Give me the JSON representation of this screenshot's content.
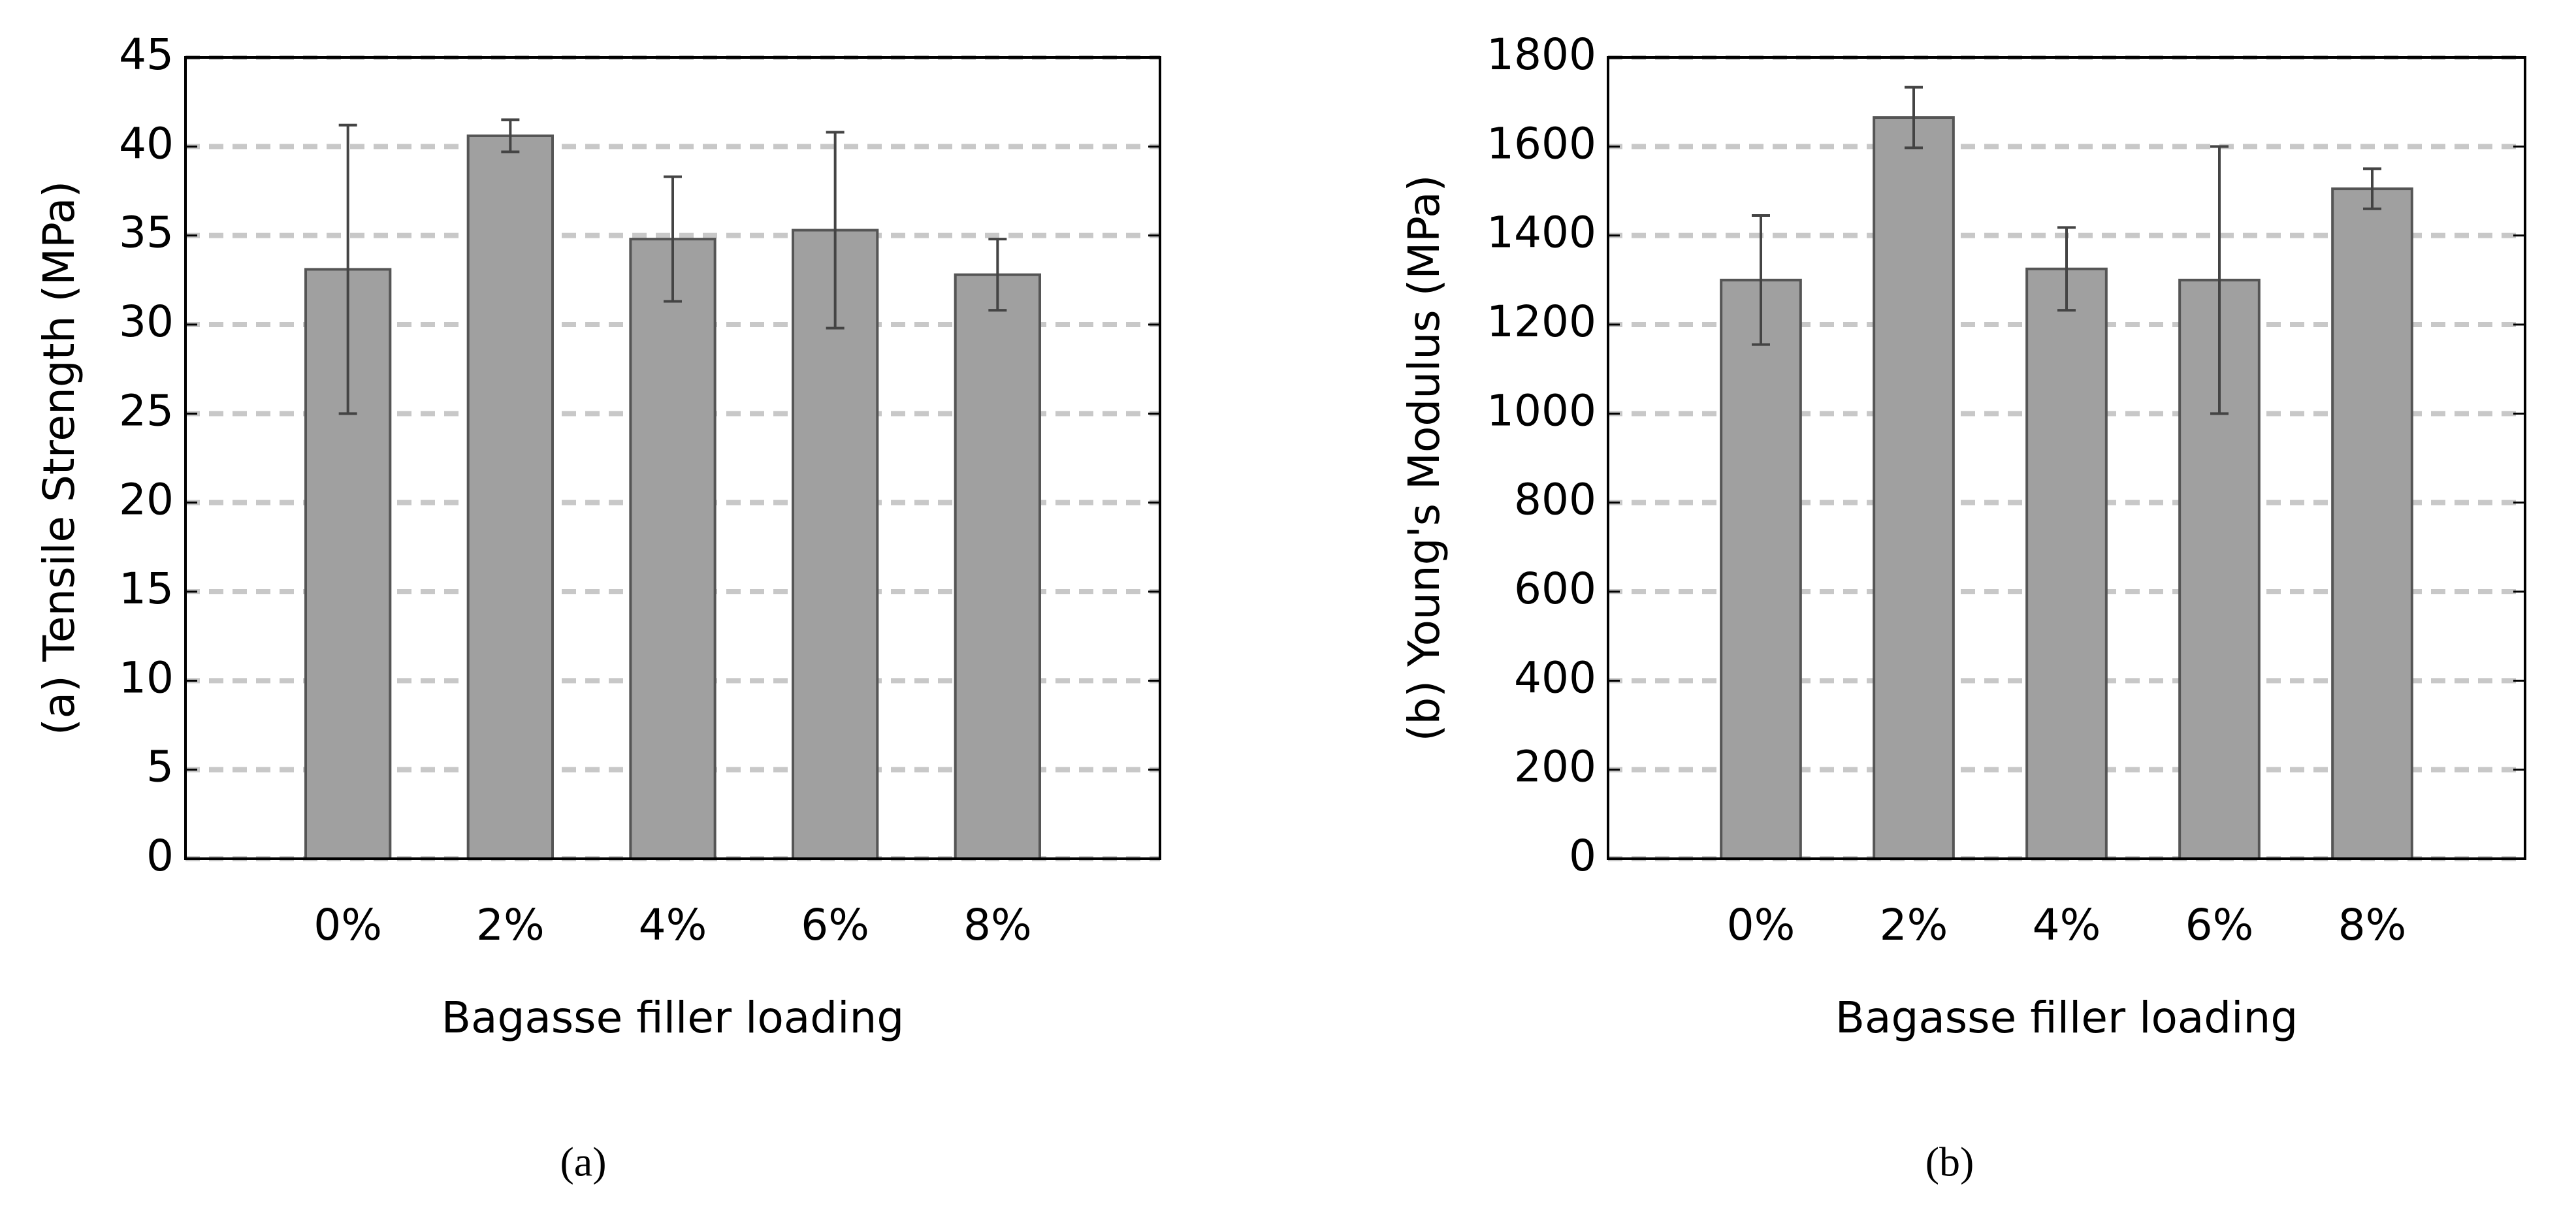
{
  "chart_data": [
    {
      "type": "bar",
      "ylabel": "(a) Tensile Strength (MPa)",
      "xlabel": "Bagasse filler loading",
      "caption": "(a)",
      "categories": [
        "0%",
        "2%",
        "4%",
        "6%",
        "8%"
      ],
      "values": [
        33.1,
        40.6,
        34.8,
        35.3,
        32.8
      ],
      "errors": [
        8.1,
        0.9,
        3.5,
        5.5,
        2.0
      ],
      "color": "#a0a0a0",
      "ylim": [
        0,
        45
      ],
      "yticks": [
        0,
        5,
        10,
        15,
        20,
        25,
        30,
        35,
        40,
        45
      ],
      "grid": true
    },
    {
      "type": "bar",
      "ylabel": "(b) Young's Modulus (MPa)",
      "xlabel": "Bagasse filler loading",
      "caption": "(b)",
      "categories": [
        "0%",
        "2%",
        "4%",
        "6%",
        "8%"
      ],
      "values": [
        1300,
        1665,
        1325,
        1300,
        1505
      ],
      "errors": [
        145,
        68,
        93,
        300,
        45
      ],
      "color": "#a0a0a0",
      "ylim": [
        0,
        1800
      ],
      "yticks": [
        0,
        200,
        400,
        600,
        800,
        1000,
        1200,
        1400,
        1600,
        1800
      ],
      "grid": true
    }
  ]
}
